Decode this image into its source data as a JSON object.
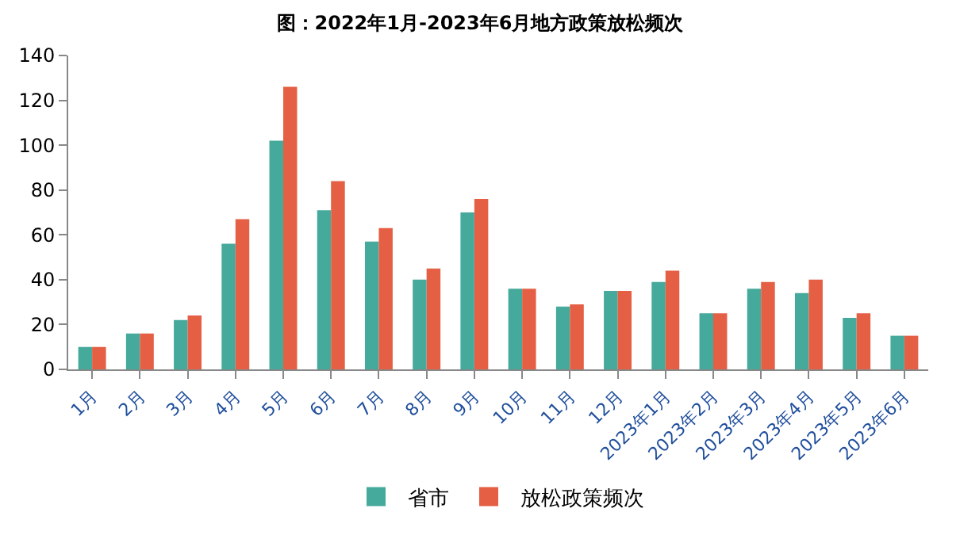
{
  "chart_data": {
    "type": "bar",
    "title": "图：2022年1月-2023年6月地方政策放松频次",
    "categories": [
      "1月",
      "2月",
      "3月",
      "4月",
      "5月",
      "6月",
      "7月",
      "8月",
      "9月",
      "10月",
      "11月",
      "12月",
      "2023年1月",
      "2023年2月",
      "2023年3月",
      "2023年4月",
      "2023年5月",
      "2023年6月"
    ],
    "series": [
      {
        "name": "省市",
        "color": "#45a99b",
        "values": [
          10,
          16,
          22,
          56,
          102,
          71,
          57,
          40,
          70,
          36,
          28,
          35,
          39,
          25,
          36,
          34,
          23,
          15
        ]
      },
      {
        "name": "放松政策频次",
        "color": "#e45f43",
        "values": [
          10,
          16,
          24,
          67,
          126,
          84,
          63,
          45,
          76,
          36,
          29,
          35,
          44,
          25,
          39,
          40,
          25,
          15
        ]
      }
    ],
    "ylim": [
      0,
      140
    ],
    "yticks": [
      0,
      20,
      40,
      60,
      80,
      100,
      120,
      140
    ],
    "legend": "bottom"
  }
}
